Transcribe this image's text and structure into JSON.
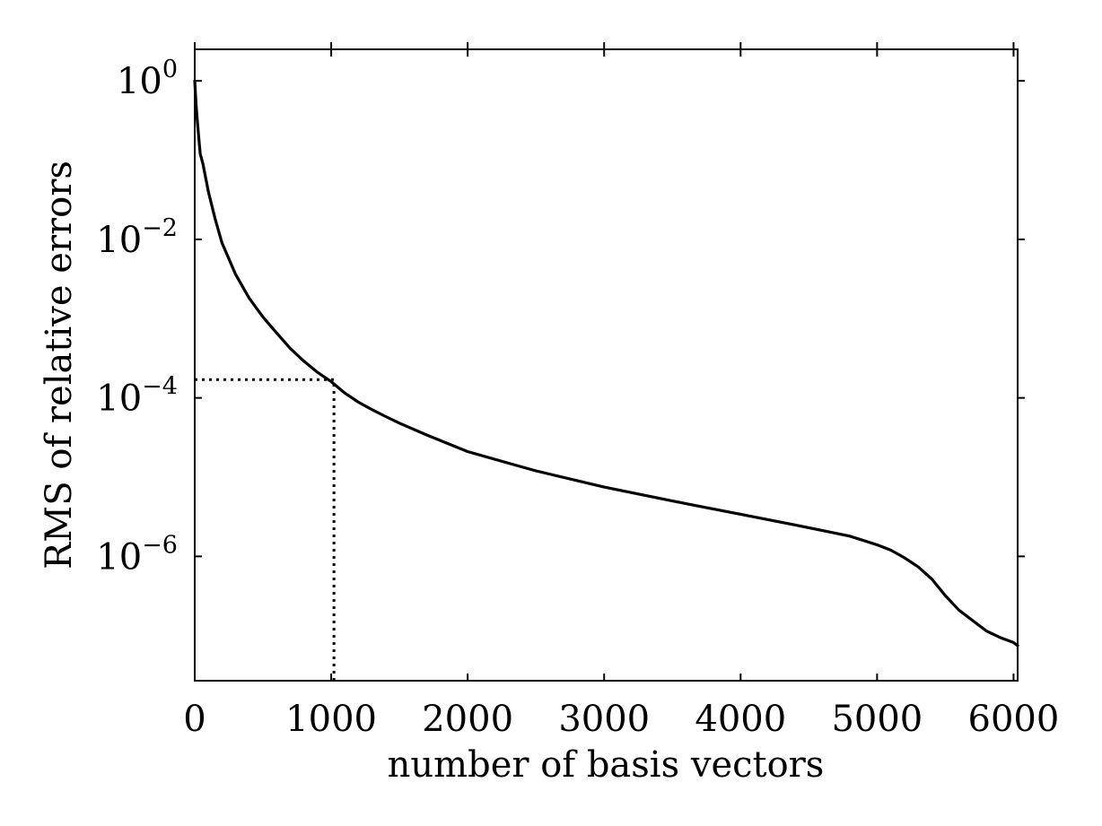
{
  "chart_data": {
    "type": "line",
    "title": "",
    "xlabel": "number of basis vectors",
    "ylabel": "RMS of relative errors",
    "xlim": [
      0,
      6030
    ],
    "ylim": [
      2.7e-08,
      2.5
    ],
    "yscale": "log",
    "grid": false,
    "x_ticks": [
      {
        "value": 0,
        "label": "0"
      },
      {
        "value": 1000,
        "label": "1000"
      },
      {
        "value": 2000,
        "label": "2000"
      },
      {
        "value": 3000,
        "label": "3000"
      },
      {
        "value": 4000,
        "label": "4000"
      },
      {
        "value": 5000,
        "label": "5000"
      },
      {
        "value": 6000,
        "label": "6000"
      }
    ],
    "y_ticks": [
      {
        "value": 1,
        "base": "10",
        "exp": "0"
      },
      {
        "value": 0.01,
        "base": "10",
        "exp": "−2"
      },
      {
        "value": 0.0001,
        "base": "10",
        "exp": "−4"
      },
      {
        "value": 1e-06,
        "base": "10",
        "exp": "−6"
      }
    ],
    "series": [
      {
        "color": "#000000",
        "style": "solid",
        "x": [
          0,
          10,
          20,
          40,
          60,
          100,
          150,
          200,
          300,
          400,
          500,
          600,
          700,
          800,
          900,
          1000,
          1100,
          1200,
          1300,
          1400,
          1500,
          1700,
          2000,
          2300,
          2500,
          3000,
          3500,
          4000,
          4500,
          4800,
          5000,
          5100,
          5200,
          5300,
          5400,
          5500,
          5600,
          5700,
          5800,
          5900,
          6000,
          6030
        ],
        "y": [
          1.0,
          0.5,
          0.3,
          0.12,
          0.09,
          0.04,
          0.018,
          0.009,
          0.0036,
          0.0018,
          0.00105,
          0.00066,
          0.00042,
          0.00029,
          0.00021,
          0.00016,
          0.000115,
          8.8e-05,
          7.1e-05,
          5.8e-05,
          4.8e-05,
          3.4e-05,
          2.1e-05,
          1.5e-05,
          1.2e-05,
          7.5e-06,
          5e-06,
          3.4e-06,
          2.3e-06,
          1.8e-06,
          1.4e-06,
          1.2e-06,
          9.6e-07,
          7.4e-07,
          5.2e-07,
          3.2e-07,
          2.1e-07,
          1.55e-07,
          1.15e-07,
          9.5e-08,
          8.2e-08,
          7.5e-08
        ]
      }
    ],
    "annotations": [
      {
        "type": "vertical-dotted-line",
        "x": 1020,
        "from_y": "bottom",
        "to_y": 0.00017
      },
      {
        "type": "horizontal-dotted-line",
        "y": 0.00017,
        "from_x": 0,
        "to_x": 1020
      }
    ]
  }
}
